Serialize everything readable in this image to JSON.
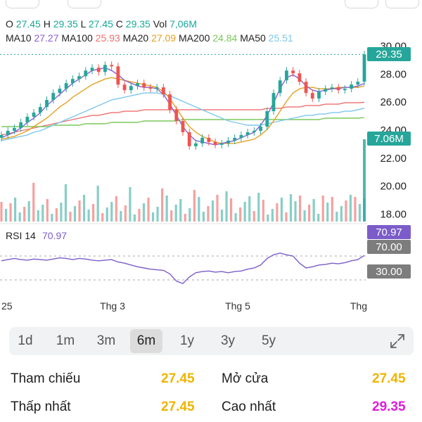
{
  "ohlc": {
    "o_label": "O",
    "o": "27.45",
    "h_label": "H",
    "h": "29.35",
    "l_label": "L",
    "l": "27.45",
    "c_label": "C",
    "c": "29.35",
    "vol_label": "Vol",
    "vol": "7,06M"
  },
  "ma": {
    "ma10_label": "MA10",
    "ma10": "27.27",
    "ma100_label": "MA100",
    "ma100": "25.93",
    "ma20_label": "MA20",
    "ma20": "27.09",
    "ma200_label": "MA200",
    "ma200": "24.84",
    "ma50_label": "MA50",
    "ma50": "25.51"
  },
  "colors": {
    "up": "#26a69a",
    "down": "#ef5350",
    "ma10": "#8a5fd2",
    "ma20": "#e5a021",
    "ma50": "#7cc7ec",
    "ma100": "#ef6f6f",
    "ma200": "#7bc95b",
    "rsi": "#7b5cc9",
    "highlight": "#f0b400",
    "high": "#e21adf"
  },
  "chart_data": {
    "type": "line",
    "price_ticks": [
      "30.00",
      "28.00",
      "26.00",
      "24.00",
      "22.00",
      "20.00",
      "18.00"
    ],
    "price_tick_values": [
      30,
      28,
      26,
      24,
      22,
      20,
      18
    ],
    "last_price_label": "29.35",
    "last_price": 29.35,
    "volume_label": "7.06M",
    "rsi_label": "RSI 14",
    "rsi_value": "70.97",
    "rsi_value_num": 70.97,
    "rsi_levels": [
      "70.00",
      "30.00"
    ],
    "rsi_level_values": [
      70,
      30
    ],
    "x_labels": [
      "25",
      "Thg 3",
      "Thg 5",
      "Thg"
    ],
    "close_series": [
      23.6,
      23.9,
      24.1,
      24.5,
      24.9,
      25.2,
      25.6,
      26.1,
      26.6,
      26.9,
      27.3,
      27.6,
      27.8,
      28.2,
      28.4,
      28.1,
      28.6,
      28.5,
      27.2,
      26.8,
      27.1,
      27.3,
      27.0,
      26.9,
      27.0,
      26.5,
      25.4,
      24.6,
      23.8,
      22.8,
      23.0,
      23.4,
      23.1,
      22.9,
      23.0,
      23.2,
      23.4,
      23.6,
      23.8,
      23.9,
      24.2,
      25.3,
      26.6,
      27.5,
      28.2,
      28.0,
      27.4,
      26.6,
      26.2,
      26.7,
      26.9,
      27.0,
      26.8,
      26.9,
      27.2,
      27.4,
      29.35
    ],
    "rsi_series": [
      62,
      64,
      66,
      64,
      63,
      65,
      64,
      63,
      65,
      67,
      66,
      64,
      66,
      65,
      63,
      62,
      63,
      64,
      60,
      58,
      55,
      52,
      50,
      48,
      47,
      46,
      40,
      28,
      24,
      35,
      42,
      44,
      45,
      43,
      44,
      42,
      44,
      45,
      48,
      50,
      55,
      66,
      72,
      75,
      72,
      70,
      58,
      50,
      52,
      55,
      56,
      58,
      57,
      59,
      62,
      64,
      70.97
    ],
    "ma10_series": [
      23.4,
      23.6,
      23.8,
      24.1,
      24.5,
      24.8,
      25.2,
      25.7,
      26.1,
      26.5,
      26.9,
      27.3,
      27.6,
      27.9,
      28.2,
      28.3,
      28.4,
      28.2,
      27.9,
      27.5,
      27.3,
      27.1,
      27.0,
      27.0,
      26.9,
      26.5,
      25.8,
      25.0,
      24.2,
      23.6,
      23.2,
      23.1,
      23.0,
      22.9,
      23.0,
      23.1,
      23.2,
      23.4,
      23.6,
      23.8,
      24.3,
      25.0,
      25.9,
      26.9,
      27.7,
      27.9,
      27.6,
      27.1,
      26.8,
      26.7,
      26.8,
      26.9,
      26.9,
      27.0,
      27.0,
      27.1,
      27.27
    ],
    "ma20_series": [
      23.3,
      23.4,
      23.5,
      23.7,
      23.9,
      24.2,
      24.5,
      24.8,
      25.2,
      25.6,
      25.9,
      26.3,
      26.6,
      26.9,
      27.2,
      27.4,
      27.6,
      27.7,
      27.6,
      27.5,
      27.4,
      27.3,
      27.2,
      27.1,
      27.0,
      26.7,
      26.2,
      25.5,
      24.8,
      24.2,
      23.8,
      23.5,
      23.3,
      23.1,
      23.0,
      23.0,
      23.0,
      23.1,
      23.2,
      23.3,
      23.6,
      24.0,
      24.6,
      25.3,
      26.0,
      26.6,
      26.9,
      27.0,
      27.0,
      26.9,
      26.9,
      26.9,
      27.0,
      27.0,
      27.0,
      27.0,
      27.09
    ],
    "ma50_series": [
      23.2,
      23.3,
      23.4,
      23.5,
      23.6,
      23.8,
      23.9,
      24.1,
      24.3,
      24.5,
      24.7,
      24.9,
      25.1,
      25.3,
      25.5,
      25.7,
      25.9,
      26.1,
      26.2,
      26.3,
      26.4,
      26.5,
      26.6,
      26.6,
      26.6,
      26.5,
      26.4,
      26.2,
      26.0,
      25.8,
      25.6,
      25.4,
      25.2,
      25.0,
      24.8,
      24.6,
      24.5,
      24.4,
      24.3,
      24.3,
      24.3,
      24.4,
      24.5,
      24.6,
      24.7,
      24.8,
      24.9,
      25.0,
      25.0,
      25.1,
      25.1,
      25.2,
      25.2,
      25.3,
      25.3,
      25.4,
      25.51
    ],
    "ma100_series": [
      23.6,
      23.7,
      23.8,
      23.9,
      24.0,
      24.1,
      24.2,
      24.3,
      24.4,
      24.5,
      24.6,
      24.7,
      24.8,
      24.9,
      25.0,
      25.0,
      25.1,
      25.2,
      25.2,
      25.3,
      25.3,
      25.3,
      25.4,
      25.4,
      25.4,
      25.4,
      25.4,
      25.4,
      25.4,
      25.4,
      25.4,
      25.4,
      25.4,
      25.4,
      25.4,
      25.4,
      25.4,
      25.4,
      25.4,
      25.4,
      25.4,
      25.5,
      25.5,
      25.5,
      25.6,
      25.6,
      25.6,
      25.7,
      25.7,
      25.7,
      25.8,
      25.8,
      25.8,
      25.9,
      25.9,
      25.9,
      25.93
    ],
    "ma200_series": [
      24.2,
      24.2,
      24.2,
      24.2,
      24.2,
      24.2,
      24.2,
      24.2,
      24.3,
      24.3,
      24.3,
      24.3,
      24.3,
      24.4,
      24.4,
      24.4,
      24.4,
      24.5,
      24.5,
      24.5,
      24.5,
      24.5,
      24.6,
      24.6,
      24.6,
      24.6,
      24.6,
      24.6,
      24.7,
      24.7,
      24.7,
      24.7,
      24.7,
      24.7,
      24.7,
      24.7,
      24.7,
      24.7,
      24.7,
      24.7,
      24.7,
      24.7,
      24.7,
      24.7,
      24.7,
      24.7,
      24.7,
      24.7,
      24.7,
      24.7,
      24.8,
      24.8,
      24.8,
      24.8,
      24.8,
      24.8,
      24.84
    ]
  },
  "ranges": [
    "1d",
    "1m",
    "3m",
    "6m",
    "1y",
    "3y",
    "5y"
  ],
  "active_range": "6m",
  "stats": {
    "ref_label": "Tham chiếu",
    "ref_value": "27.45",
    "open_label": "Mở cửa",
    "open_value": "27.45",
    "low_label": "Thấp nhất",
    "low_value": "27.45",
    "high_label": "Cao nhất",
    "high_value": "29.35"
  }
}
